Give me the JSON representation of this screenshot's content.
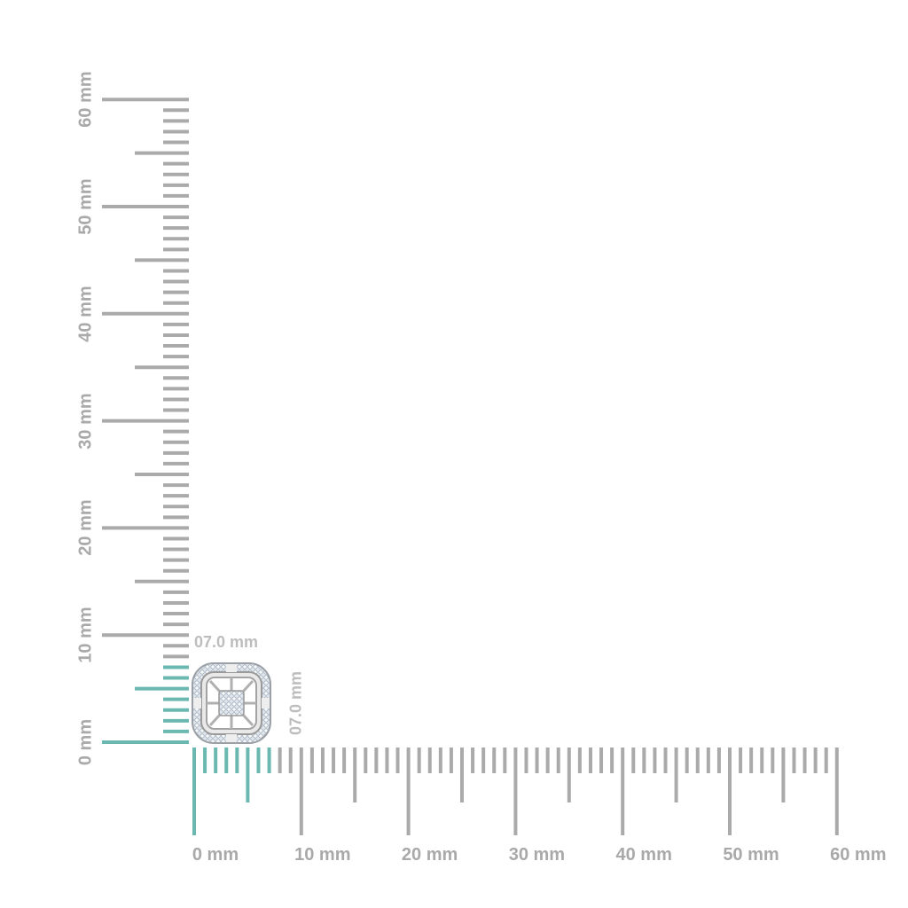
{
  "units": "mm",
  "vertical_ruler": {
    "labels": [
      "0 mm",
      "10 mm",
      "20 mm",
      "30 mm",
      "40 mm",
      "50 mm",
      "60 mm"
    ],
    "range_mm": [
      0,
      60
    ]
  },
  "horizontal_ruler": {
    "labels": [
      "0 mm",
      "10 mm",
      "20 mm",
      "30 mm",
      "40 mm",
      "50 mm",
      "60 mm"
    ],
    "range_mm": [
      0,
      60
    ]
  },
  "product": {
    "width_label": "07.0 mm",
    "height_label": "07.0 mm",
    "width_mm": 7,
    "height_mm": 7
  },
  "colors": {
    "ruler": "#aaaaaa",
    "highlight": "#6bb8b0",
    "label": "#a9a9a9"
  }
}
